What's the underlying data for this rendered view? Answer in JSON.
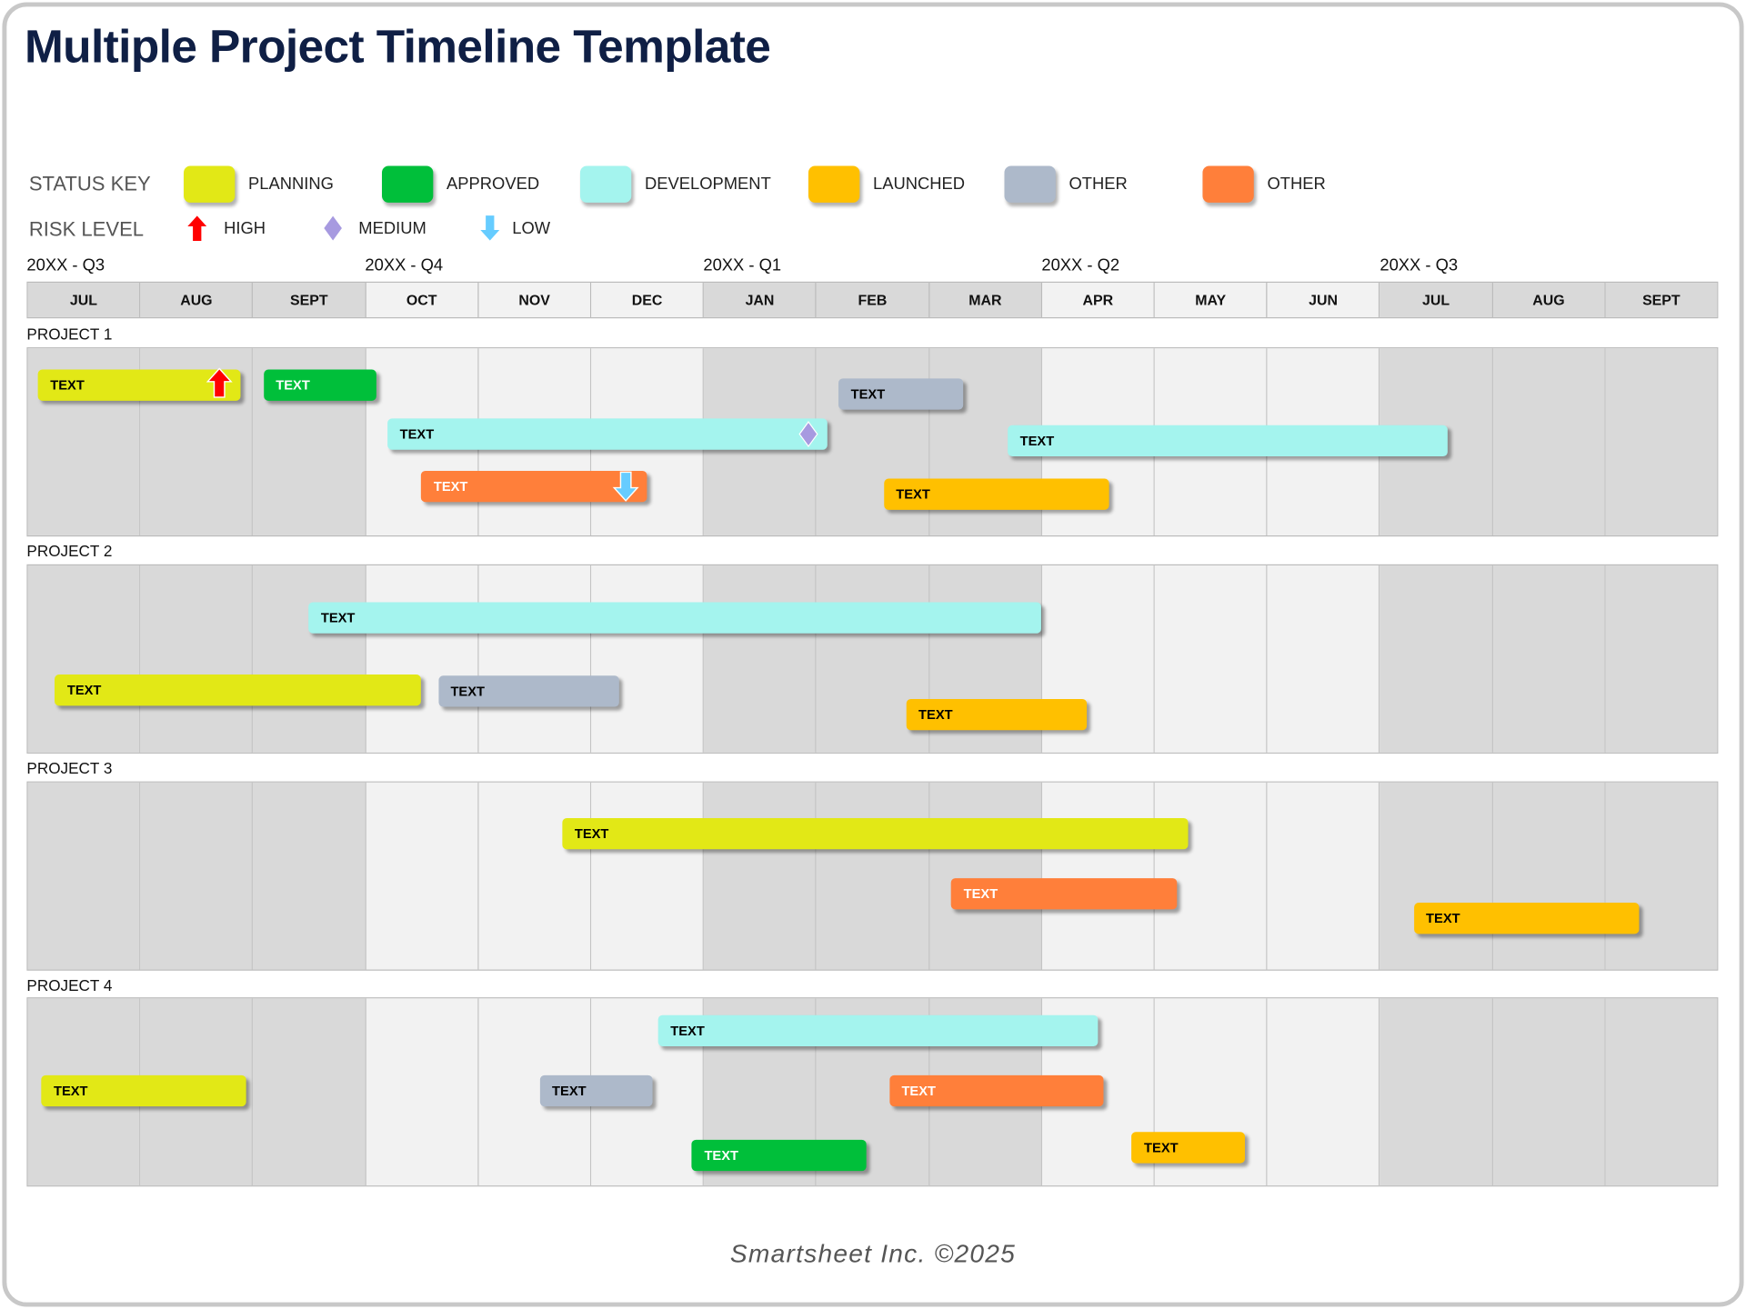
{
  "title": "Multiple Project Timeline Template",
  "status_key": {
    "label": "STATUS KEY",
    "items": [
      {
        "label": "PLANNING",
        "color": "#e2e816",
        "text_color": "#000000"
      },
      {
        "label": "APPROVED",
        "color": "#00bf3a",
        "text_color": "#ffffff"
      },
      {
        "label": "DEVELOPMENT",
        "color": "#a4f4ee",
        "text_color": "#000000"
      },
      {
        "label": "LAUNCHED",
        "color": "#ffc000",
        "text_color": "#000000"
      },
      {
        "label": "OTHER",
        "color": "#adb9ca",
        "text_color": "#000000"
      },
      {
        "label": "OTHER",
        "color": "#ff7f3a",
        "text_color": "#ffffff"
      }
    ]
  },
  "risk_level": {
    "label": "RISK LEVEL",
    "items": [
      {
        "label": "HIGH",
        "icon": "arrow-up-icon",
        "color": "#ff0000"
      },
      {
        "label": "MEDIUM",
        "icon": "diamond-icon",
        "color": "#a79ae0"
      },
      {
        "label": "LOW",
        "icon": "arrow-down-icon",
        "color": "#66ccff"
      }
    ]
  },
  "quarters": [
    "20XX - Q3",
    "20XX - Q4",
    "20XX - Q1",
    "20XX - Q2",
    "20XX - Q3"
  ],
  "months": [
    "JUL",
    "AUG",
    "SEPT",
    "OCT",
    "NOV",
    "DEC",
    "JAN",
    "FEB",
    "MAR",
    "APR",
    "MAY",
    "JUN",
    "JUL",
    "AUG",
    "SEPT"
  ],
  "shade_colors": {
    "dark": "#d9d9d9",
    "light": "#f2f2f2"
  },
  "projects": [
    {
      "name": "PROJECT 1",
      "tasks": [
        {
          "text": "TEXT",
          "status": 0,
          "start": 0.1,
          "end": 1.9,
          "risk": "high"
        },
        {
          "text": "TEXT",
          "status": 1,
          "start": 2.1,
          "end": 3.1
        },
        {
          "text": "TEXT",
          "status": 4,
          "start": 7.2,
          "end": 8.3
        },
        {
          "text": "TEXT",
          "status": 2,
          "start": 3.2,
          "end": 7.1,
          "risk": "medium"
        },
        {
          "text": "TEXT",
          "status": 2,
          "start": 8.7,
          "end": 12.6
        },
        {
          "text": "TEXT",
          "status": 5,
          "start": 3.5,
          "end": 5.5,
          "risk": "low"
        },
        {
          "text": "TEXT",
          "status": 3,
          "start": 7.6,
          "end": 9.6
        }
      ]
    },
    {
      "name": "PROJECT 2",
      "tasks": [
        {
          "text": "TEXT",
          "status": 2,
          "start": 2.5,
          "end": 9.0
        },
        {
          "text": "TEXT",
          "status": 0,
          "start": 0.25,
          "end": 3.5
        },
        {
          "text": "TEXT",
          "status": 4,
          "start": 3.65,
          "end": 5.25
        },
        {
          "text": "TEXT",
          "status": 3,
          "start": 7.8,
          "end": 9.4
        }
      ]
    },
    {
      "name": "PROJECT 3",
      "tasks": [
        {
          "text": "TEXT",
          "status": 0,
          "start": 4.75,
          "end": 10.3
        },
        {
          "text": "TEXT",
          "status": 5,
          "start": 8.2,
          "end": 10.2
        },
        {
          "text": "TEXT",
          "status": 3,
          "start": 12.3,
          "end": 14.3
        }
      ]
    },
    {
      "name": "PROJECT 4",
      "tasks": [
        {
          "text": "TEXT",
          "status": 2,
          "start": 5.6,
          "end": 9.5
        },
        {
          "text": "TEXT",
          "status": 0,
          "start": 0.13,
          "end": 1.95
        },
        {
          "text": "TEXT",
          "status": 4,
          "start": 4.55,
          "end": 5.55
        },
        {
          "text": "TEXT",
          "status": 5,
          "start": 7.65,
          "end": 9.55
        },
        {
          "text": "TEXT",
          "status": 1,
          "start": 5.9,
          "end": 7.45
        },
        {
          "text": "TEXT",
          "status": 3,
          "start": 9.8,
          "end": 10.8
        }
      ]
    }
  ],
  "footer": "Smartsheet Inc. ©2025"
}
